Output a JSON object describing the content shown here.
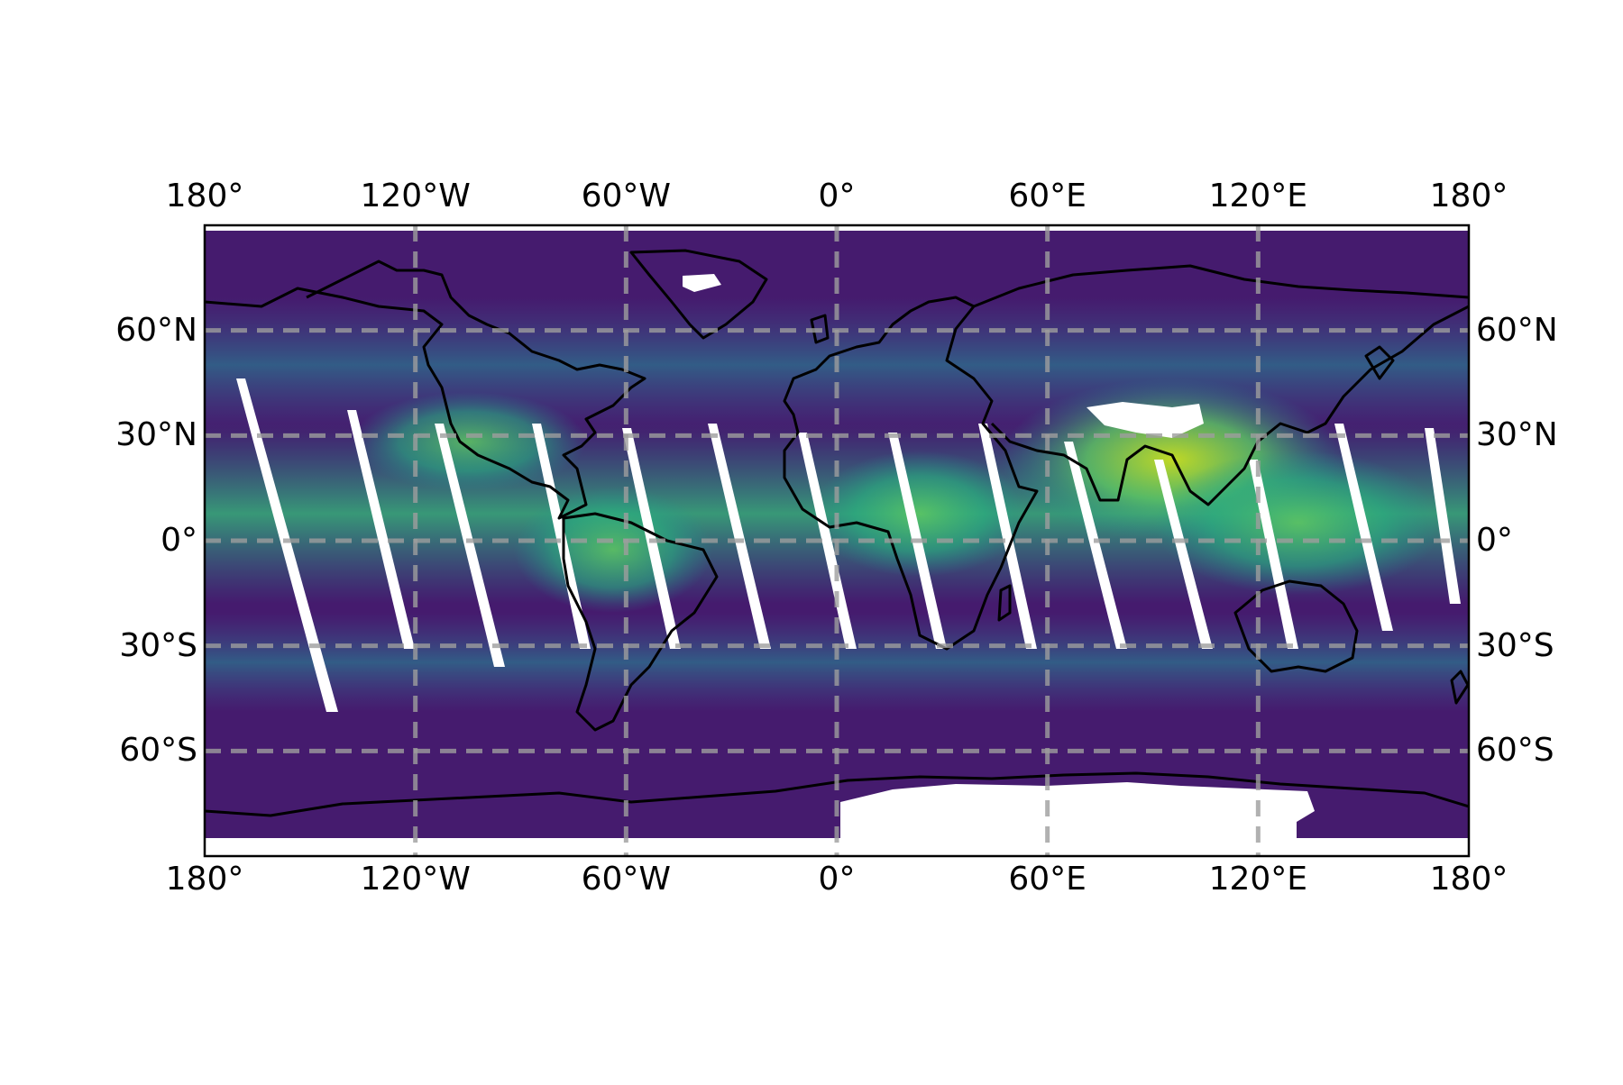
{
  "chart_data": {
    "type": "heatmap",
    "projection": "PlateCarree",
    "title": "",
    "colormap": "viridis",
    "colormap_stops": [
      "#440154",
      "#3b528b",
      "#21918c",
      "#5ec962",
      "#fde725"
    ],
    "missing_data_color": "#ffffff",
    "coastline_color": "#000000",
    "gridline_color": "#9e9e9e",
    "gridlines": true,
    "gridline_style": "dashed",
    "xlim": [
      -180,
      180
    ],
    "ylim": [
      -90,
      90
    ],
    "x_ticks": [
      -180,
      -120,
      -60,
      0,
      60,
      120,
      180
    ],
    "x_tick_labels": [
      "180°",
      "120°W",
      "60°W",
      "0°",
      "60°E",
      "120°E",
      "180°"
    ],
    "y_ticks": [
      60,
      30,
      0,
      -30,
      -60
    ],
    "y_tick_labels": [
      "60°N",
      "30°N",
      "0°",
      "30°S",
      "60°S"
    ],
    "tick_label_sides": [
      "top",
      "bottom",
      "left",
      "right"
    ],
    "high_value_regions": [
      {
        "region": "South / Southeast Asia",
        "level": 0.9
      },
      {
        "region": "Western Pacific warm pool",
        "level": 0.7
      },
      {
        "region": "Equatorial Africa",
        "level": 0.6
      },
      {
        "region": "Amazon basin",
        "level": 0.6
      },
      {
        "region": "ITCZ band",
        "level": 0.55
      }
    ],
    "missing_data_features": [
      "Satellite orbit swath gaps (diagonal white strips across the tropics)",
      "Greenland interior",
      "Tibetan Plateau",
      "East Antarctica interior"
    ]
  }
}
